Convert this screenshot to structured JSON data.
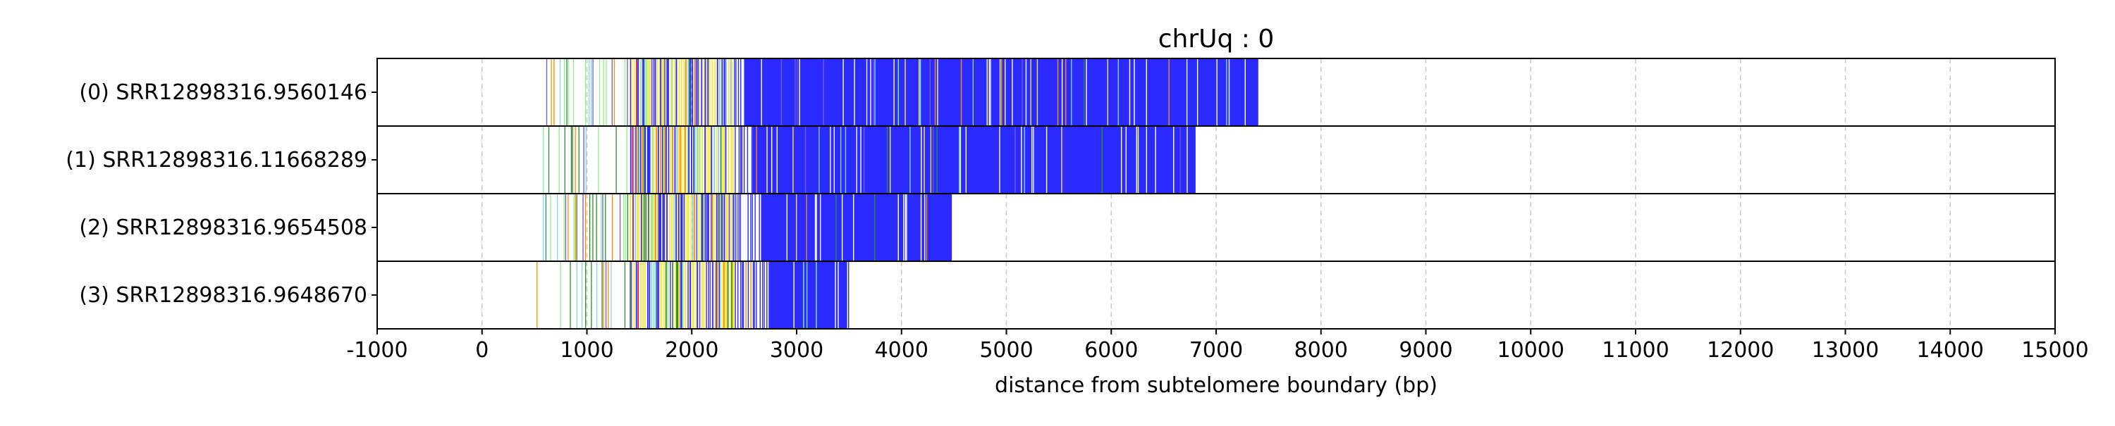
{
  "chart_data": {
    "type": "read_track_plot",
    "title": "chrUq : 0",
    "xlabel": "distance from subtelomere boundary (bp)",
    "xlim": [
      -1000,
      15000
    ],
    "xticks": [
      -1000,
      0,
      1000,
      2000,
      3000,
      4000,
      5000,
      6000,
      7000,
      8000,
      9000,
      10000,
      11000,
      12000,
      13000,
      14000,
      15000
    ],
    "grid": "vertical dashed",
    "category_colors": {
      "repeat": "#2b2bff",
      "variant_a": "#f5e642",
      "variant_b": "#2e8b2e",
      "variant_c": "#87cefa",
      "variant_d": "#dc143c",
      "variant_e": "#90ee90",
      "variant_f": "#ff8c00",
      "variant_g": "#6a5acd"
    },
    "reads": [
      {
        "label": "(0) SRR12898316.9560146",
        "start": 550,
        "end": 7400
      },
      {
        "label": "(1) SRR12898316.11668289",
        "start": 580,
        "end": 6800
      },
      {
        "label": "(2) SRR12898316.9654508",
        "start": 580,
        "end": 4480
      },
      {
        "label": "(3) SRR12898316.9648670",
        "start": 520,
        "end": 3500
      }
    ]
  }
}
